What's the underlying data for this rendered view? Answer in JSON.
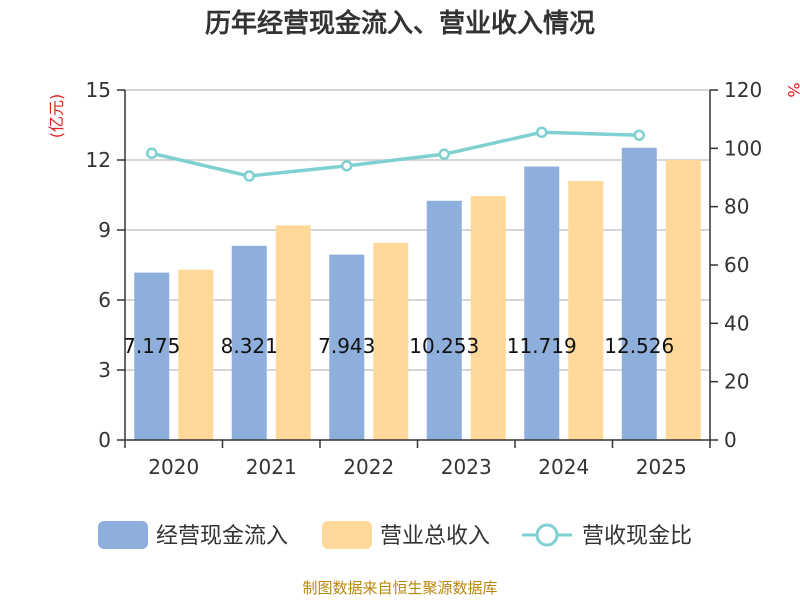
{
  "chart_data": {
    "type": "bar",
    "title": "历年经营现金流入、营业收入情况",
    "categories": [
      "2020",
      "2021",
      "2022",
      "2023",
      "2024",
      "2025"
    ],
    "series": [
      {
        "name": "经营现金流入",
        "axis": "left",
        "color": "#8eaedb",
        "values": [
          7.175,
          8.321,
          7.943,
          10.253,
          11.719,
          12.526
        ],
        "data_labels": [
          "7.175",
          "8.321",
          "7.943",
          "10.253",
          "11.719",
          "12.526"
        ]
      },
      {
        "name": "营业总收入",
        "axis": "left",
        "color": "#ffd89a",
        "values": [
          7.3,
          9.2,
          8.45,
          10.45,
          11.1,
          12.0
        ]
      },
      {
        "name": "营收现金比",
        "axis": "right",
        "type": "line",
        "color": "#7fd0d0",
        "values": [
          98.3,
          90.5,
          94.0,
          98.0,
          105.5,
          104.5
        ]
      }
    ],
    "y_left": {
      "label": "(亿元)",
      "ylim": [
        0,
        15
      ],
      "ticks": [
        0,
        3,
        6,
        9,
        12,
        15
      ]
    },
    "y_right": {
      "label": "%",
      "ylim": [
        0,
        120
      ],
      "ticks": [
        0,
        20,
        40,
        60,
        80,
        100,
        120
      ]
    },
    "grid": true,
    "legend": "bottom"
  },
  "source": "制图数据来自恒生聚源数据库"
}
